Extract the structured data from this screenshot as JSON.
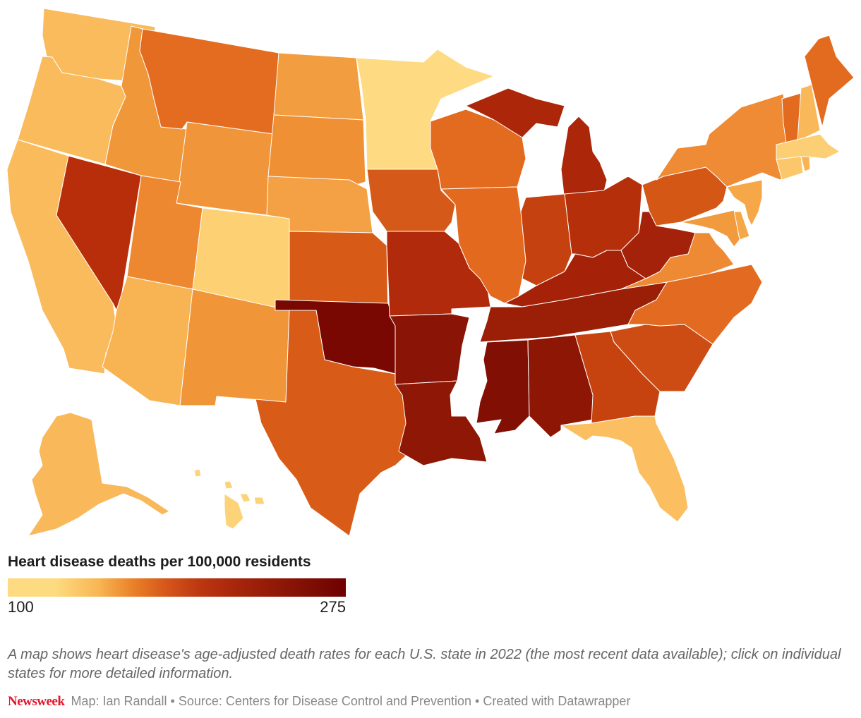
{
  "chart_data": {
    "type": "choropleth",
    "title": "Heart disease deaths per 100,000 residents",
    "scale": {
      "min": 100,
      "max": 275,
      "colors": [
        "#fedb82",
        "#fdd97d",
        "#f8b552",
        "#ef8f33",
        "#e16c22",
        "#c9461b",
        "#b02a0b",
        "#921604",
        "#6f0000"
      ]
    },
    "states": [
      {
        "name": "Washington",
        "color": "#f9bb5c"
      },
      {
        "name": "Oregon",
        "color": "#f9bb5c"
      },
      {
        "name": "California",
        "color": "#f9bb5c"
      },
      {
        "name": "Nevada",
        "color": "#b82e0b"
      },
      {
        "name": "Idaho",
        "color": "#f0973a"
      },
      {
        "name": "Montana",
        "color": "#e36c20"
      },
      {
        "name": "Wyoming",
        "color": "#f0953a"
      },
      {
        "name": "Utah",
        "color": "#ed8830"
      },
      {
        "name": "Arizona",
        "color": "#f8b453"
      },
      {
        "name": "Colorado",
        "color": "#fdd073"
      },
      {
        "name": "New Mexico",
        "color": "#f09639"
      },
      {
        "name": "North Dakota",
        "color": "#f29d40"
      },
      {
        "name": "South Dakota",
        "color": "#ef9035"
      },
      {
        "name": "Nebraska",
        "color": "#f3a144"
      },
      {
        "name": "Kansas",
        "color": "#d75a17"
      },
      {
        "name": "Oklahoma",
        "color": "#7a0802"
      },
      {
        "name": "Texas",
        "color": "#d85b18"
      },
      {
        "name": "Minnesota",
        "color": "#fedb82"
      },
      {
        "name": "Iowa",
        "color": "#d55918"
      },
      {
        "name": "Missouri",
        "color": "#b02a0b"
      },
      {
        "name": "Arkansas",
        "color": "#8a1506"
      },
      {
        "name": "Louisiana",
        "color": "#8e1705"
      },
      {
        "name": "Wisconsin",
        "color": "#e36b20"
      },
      {
        "name": "Illinois",
        "color": "#e3691f"
      },
      {
        "name": "Michigan",
        "color": "#ac2609"
      },
      {
        "name": "Indiana",
        "color": "#c5410f"
      },
      {
        "name": "Ohio",
        "color": "#b52f0b"
      },
      {
        "name": "Kentucky",
        "color": "#a52209"
      },
      {
        "name": "Tennessee",
        "color": "#9b1e07"
      },
      {
        "name": "Mississippi",
        "color": "#820f03"
      },
      {
        "name": "Alabama",
        "color": "#8d1604"
      },
      {
        "name": "Georgia",
        "color": "#c6430f"
      },
      {
        "name": "Florida",
        "color": "#fbbf61"
      },
      {
        "name": "South Carolina",
        "color": "#cd4c14"
      },
      {
        "name": "North Carolina",
        "color": "#e26b21"
      },
      {
        "name": "Virginia",
        "color": "#ee8a34"
      },
      {
        "name": "West Virginia",
        "color": "#a42209"
      },
      {
        "name": "Pennsylvania",
        "color": "#d45716"
      },
      {
        "name": "New York",
        "color": "#ee8b34"
      },
      {
        "name": "New Jersey",
        "color": "#f6a848"
      },
      {
        "name": "Delaware",
        "color": "#f6a848"
      },
      {
        "name": "Maryland",
        "color": "#f19a3e"
      },
      {
        "name": "Vermont",
        "color": "#e36b20"
      },
      {
        "name": "New Hampshire",
        "color": "#f9b85a"
      },
      {
        "name": "Maine",
        "color": "#e36b20"
      },
      {
        "name": "Massachusetts",
        "color": "#fdcf74"
      },
      {
        "name": "Connecticut",
        "color": "#fbc76a"
      },
      {
        "name": "Rhode Island",
        "color": "#f8b453"
      },
      {
        "name": "Alaska",
        "color": "#f9b85a"
      },
      {
        "name": "Hawaii",
        "color": "#fdd37a"
      }
    ]
  },
  "legend": {
    "title": "Heart disease deaths per 100,000 residents",
    "min_label": "100",
    "max_label": "275"
  },
  "description": "A map shows heart disease's age-adjusted death rates for each U.S. state in 2022 (the most recent data available); click on individual states for more detailed information.",
  "footer": {
    "brand": "Newsweek",
    "credits": "Map: Ian Randall • Source: Centers for Disease Control and Prevention • Created with Datawrapper"
  }
}
